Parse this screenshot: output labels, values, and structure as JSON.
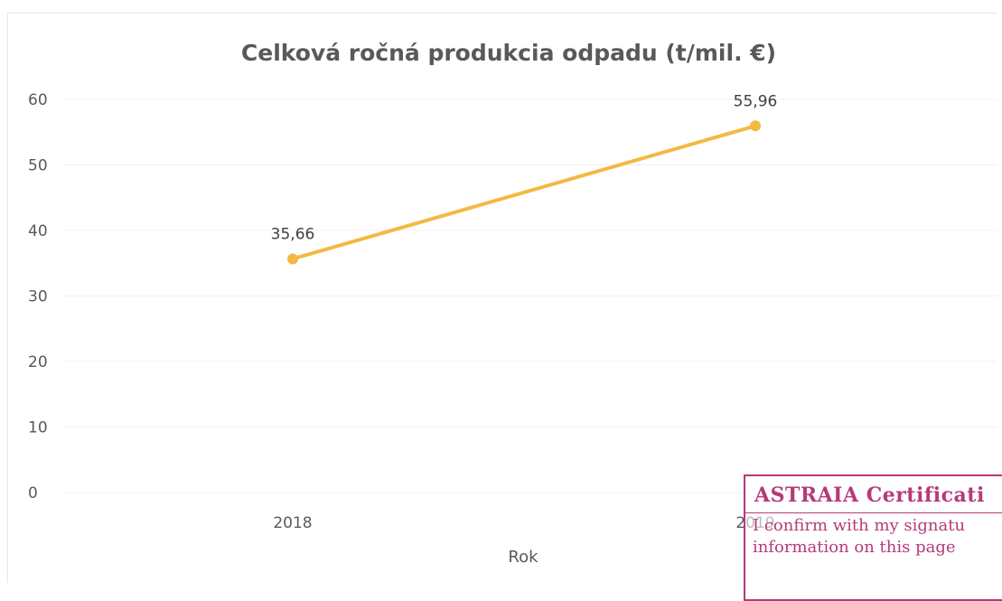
{
  "chart_data": {
    "type": "line",
    "title": "Celková ročná produkcia odpadu (t/mil. €)",
    "xlabel": "Rok",
    "ylabel": "",
    "categories": [
      "2018",
      "2019"
    ],
    "series": [
      {
        "values": [
          35.66,
          55.96
        ],
        "labels": [
          "35,66",
          "55,96"
        ],
        "color": "#f4b942"
      }
    ],
    "ylim": [
      0,
      60
    ],
    "yticks": [
      "0",
      "10",
      "20",
      "30",
      "40",
      "50",
      "60"
    ],
    "grid": true,
    "legend": "none"
  },
  "stamp": {
    "title": "ASTRAIA Certificati",
    "text": "I confirm with my signatu\ninformation on this page"
  }
}
